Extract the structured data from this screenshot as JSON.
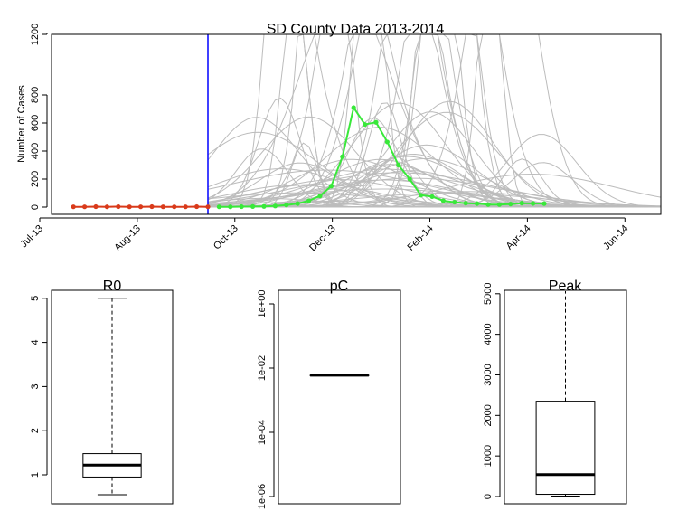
{
  "chart_data": [
    {
      "type": "line",
      "title": "SD County Data 2013-2014",
      "xlabel": "",
      "ylabel": "Number of Cases",
      "x_tick_labels": [
        "Jul-13",
        "Aug-13",
        "Oct-13",
        "Dec-13",
        "Feb-14",
        "Apr-14",
        "Jun-14"
      ],
      "x_tick_weeks": [
        0,
        8.7,
        17.4,
        26.1,
        34.8,
        43.5,
        52.2
      ],
      "y_tick_labels": [
        "0",
        "200",
        "400",
        "600",
        "800",
        "1200"
      ],
      "y_tick_values": [
        0,
        200,
        400,
        600,
        800,
        1200
      ],
      "ylim": [
        0,
        1200
      ],
      "y_axis_break": [
        800,
        1200
      ],
      "forecast_start_week": 15,
      "series": [
        {
          "name": "",
          "color": "#d93a1a",
          "x": [
            3,
            4,
            5,
            6,
            7,
            8,
            9,
            10,
            11,
            12,
            13,
            14,
            15
          ],
          "values": [
            2,
            2,
            3,
            2,
            3,
            2,
            2,
            3,
            2,
            2,
            2,
            3,
            2
          ]
        },
        {
          "name": "",
          "color": "#39e83a",
          "x": [
            16,
            17,
            18,
            19,
            20,
            21,
            22,
            23,
            24,
            25,
            26,
            27,
            28,
            29,
            30,
            31,
            32,
            33,
            34,
            35,
            36,
            37,
            38,
            39,
            40,
            41,
            42,
            43,
            44,
            45
          ],
          "values": [
            2,
            2,
            3,
            4,
            5,
            8,
            15,
            25,
            45,
            80,
            150,
            360,
            710,
            590,
            605,
            465,
            300,
            200,
            85,
            75,
            45,
            35,
            28,
            25,
            18,
            18,
            22,
            28,
            26,
            25
          ]
        }
      ],
      "simulations": {
        "color": "#bcbcbc",
        "count": 60
      }
    },
    {
      "type": "boxplot",
      "title": "R0",
      "y_tick_labels": [
        "1",
        "2",
        "3",
        "4",
        "5"
      ],
      "ylim": [
        0.5,
        5.2
      ],
      "box": {
        "whisker_low": 0.55,
        "q1": 0.95,
        "median": 1.22,
        "q3": 1.48,
        "whisker_high": 5.0
      }
    },
    {
      "type": "boxplot",
      "title": "pC",
      "scale": "log",
      "y_tick_labels": [
        "1e-06",
        "1e-04",
        "1e-02",
        "1e+00"
      ],
      "ylim": [
        1e-06,
        1.5
      ],
      "box": {
        "whisker_low": 0.006,
        "q1": 0.006,
        "median": 0.006,
        "q3": 0.006,
        "whisker_high": 0.006
      }
    },
    {
      "type": "boxplot",
      "title": "Peak",
      "y_tick_labels": [
        "0",
        "1000",
        "2000",
        "3000",
        "4000",
        "5000"
      ],
      "ylim": [
        -80,
        5250
      ],
      "box": {
        "whisker_low": 10,
        "q1": 55,
        "median": 540,
        "q3": 2350,
        "whisker_high": 5300
      }
    }
  ]
}
